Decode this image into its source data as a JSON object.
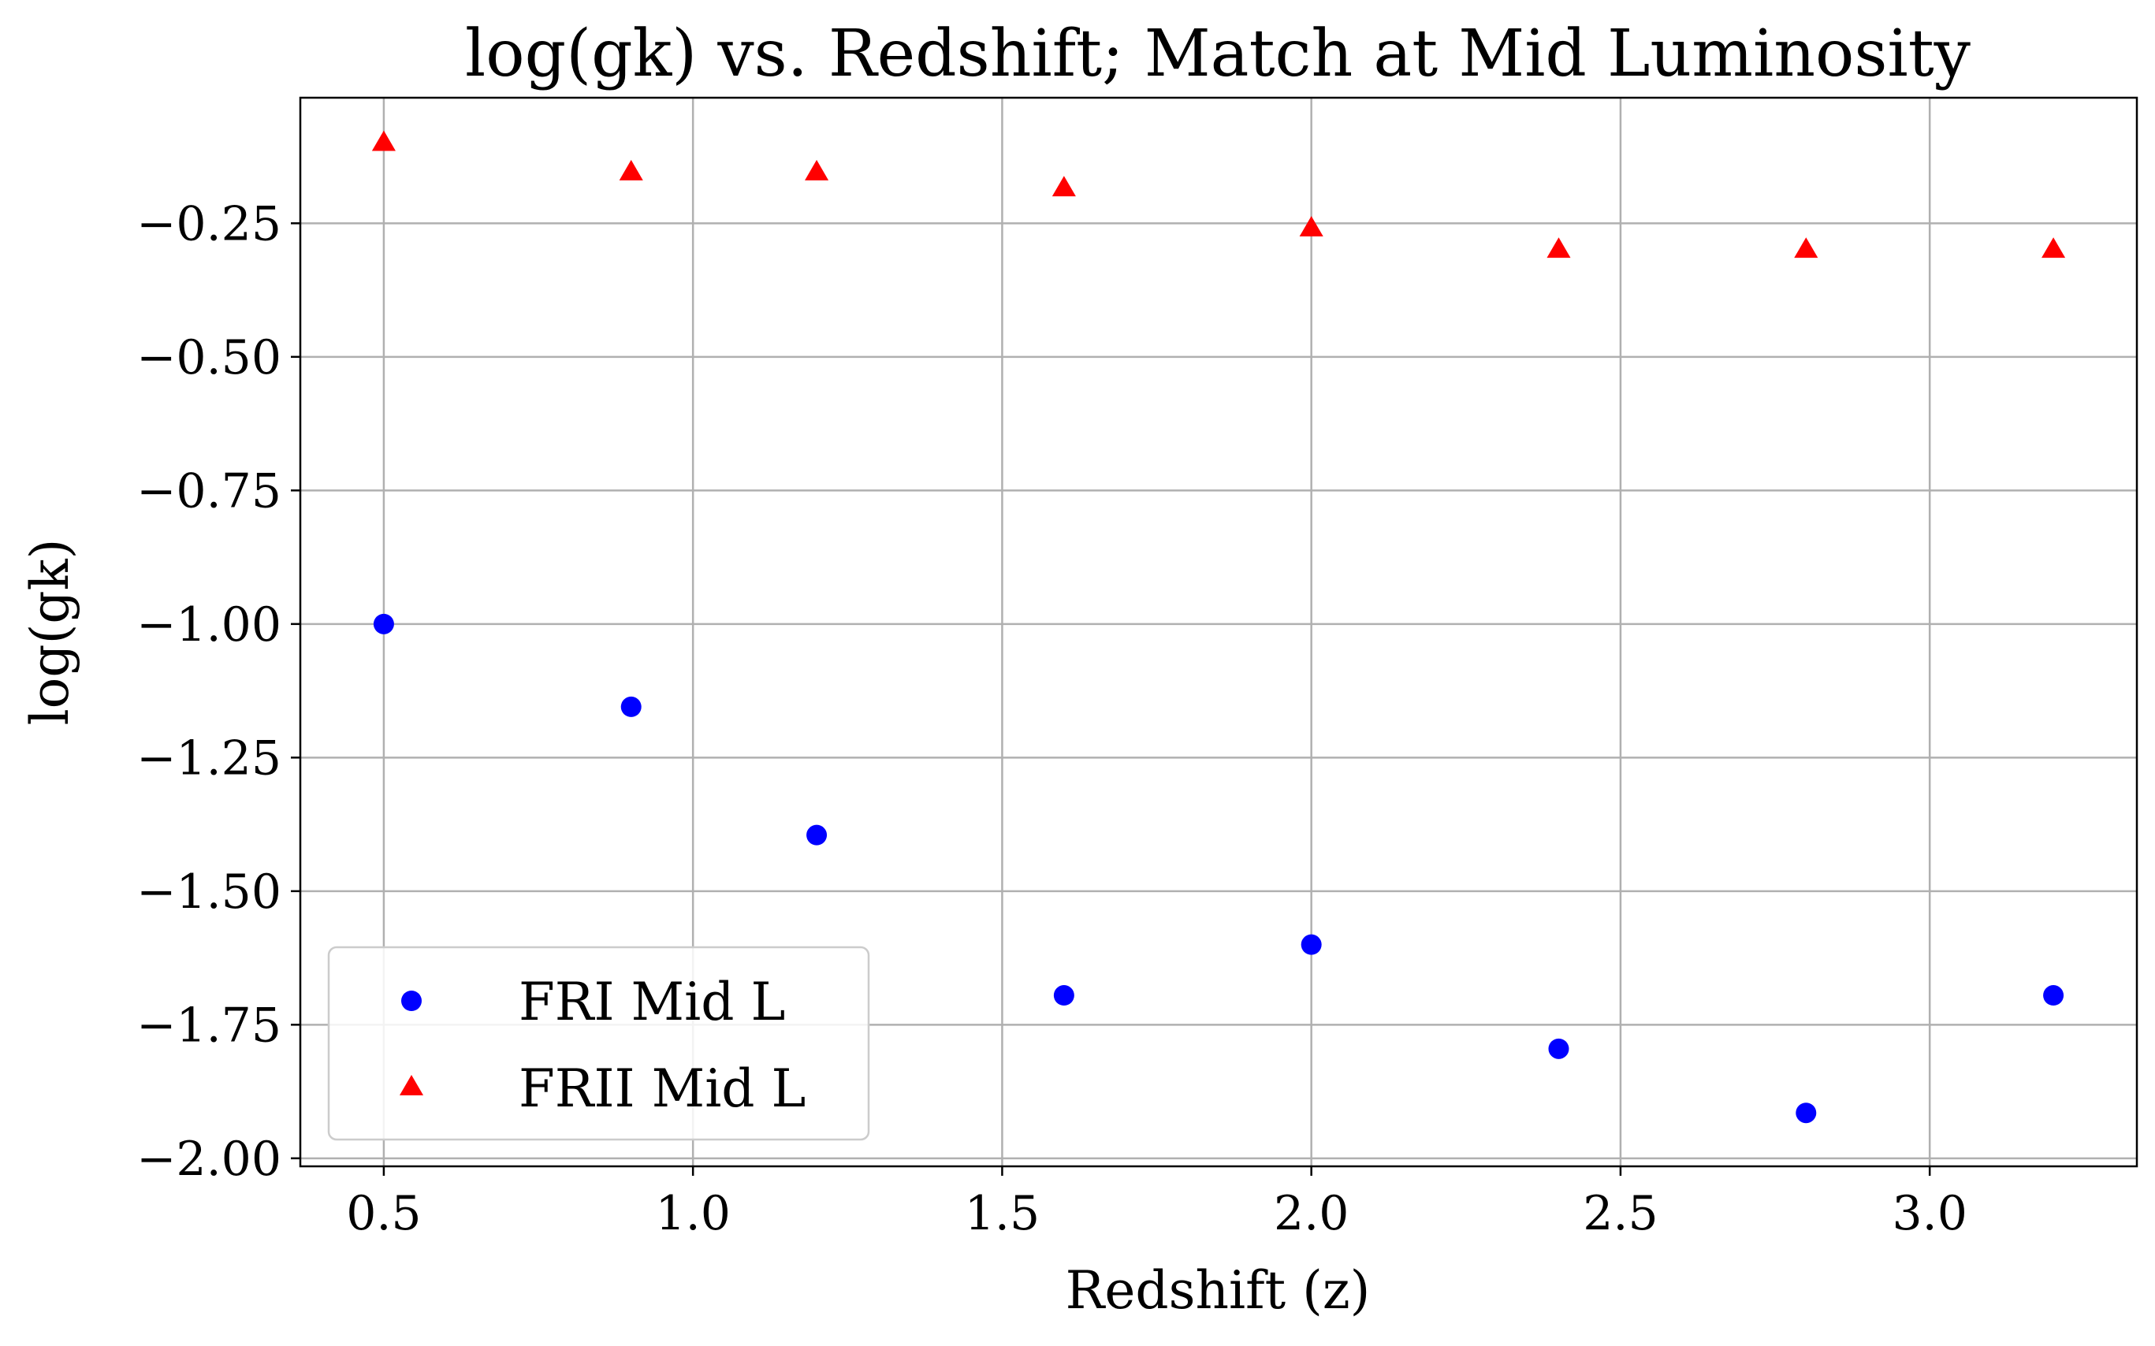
{
  "chart_data": {
    "type": "scatter",
    "title": "log(gk) vs. Redshift; Match at Mid Luminosity",
    "xlabel": "Redshift (z)",
    "ylabel": "log(gk)",
    "xlim": [
      0.365,
      3.335
    ],
    "ylim": [
      -2.015,
      -0.015
    ],
    "xticks": [
      0.5,
      1.0,
      1.5,
      2.0,
      2.5,
      3.0
    ],
    "xtick_labels": [
      "0.5",
      "1.0",
      "1.5",
      "2.0",
      "2.5",
      "3.0"
    ],
    "yticks": [
      -0.25,
      -0.5,
      -0.75,
      -1.0,
      -1.25,
      -1.5,
      -1.75,
      -2.0
    ],
    "ytick_labels": [
      "−0.25",
      "−0.50",
      "−0.75",
      "−1.00",
      "−1.25",
      "−1.50",
      "−1.75",
      "−2.00"
    ],
    "grid": true,
    "legend_position": "lower-left",
    "series": [
      {
        "name": "FRI Mid L",
        "marker": "circle",
        "color": "#0000ff",
        "x": [
          0.5,
          0.9,
          1.2,
          1.6,
          2.0,
          2.4,
          2.8,
          3.2
        ],
        "y": [
          -1.0,
          -1.155,
          -1.395,
          -1.695,
          -1.6,
          -1.795,
          -1.915,
          -1.695
        ]
      },
      {
        "name": "FRII Mid L",
        "marker": "triangle",
        "color": "#ff0000",
        "x": [
          0.5,
          0.9,
          1.2,
          1.6,
          2.0,
          2.4,
          2.8,
          3.2
        ],
        "y": [
          -0.1,
          -0.155,
          -0.155,
          -0.185,
          -0.26,
          -0.3,
          -0.3,
          -0.3
        ]
      }
    ]
  }
}
